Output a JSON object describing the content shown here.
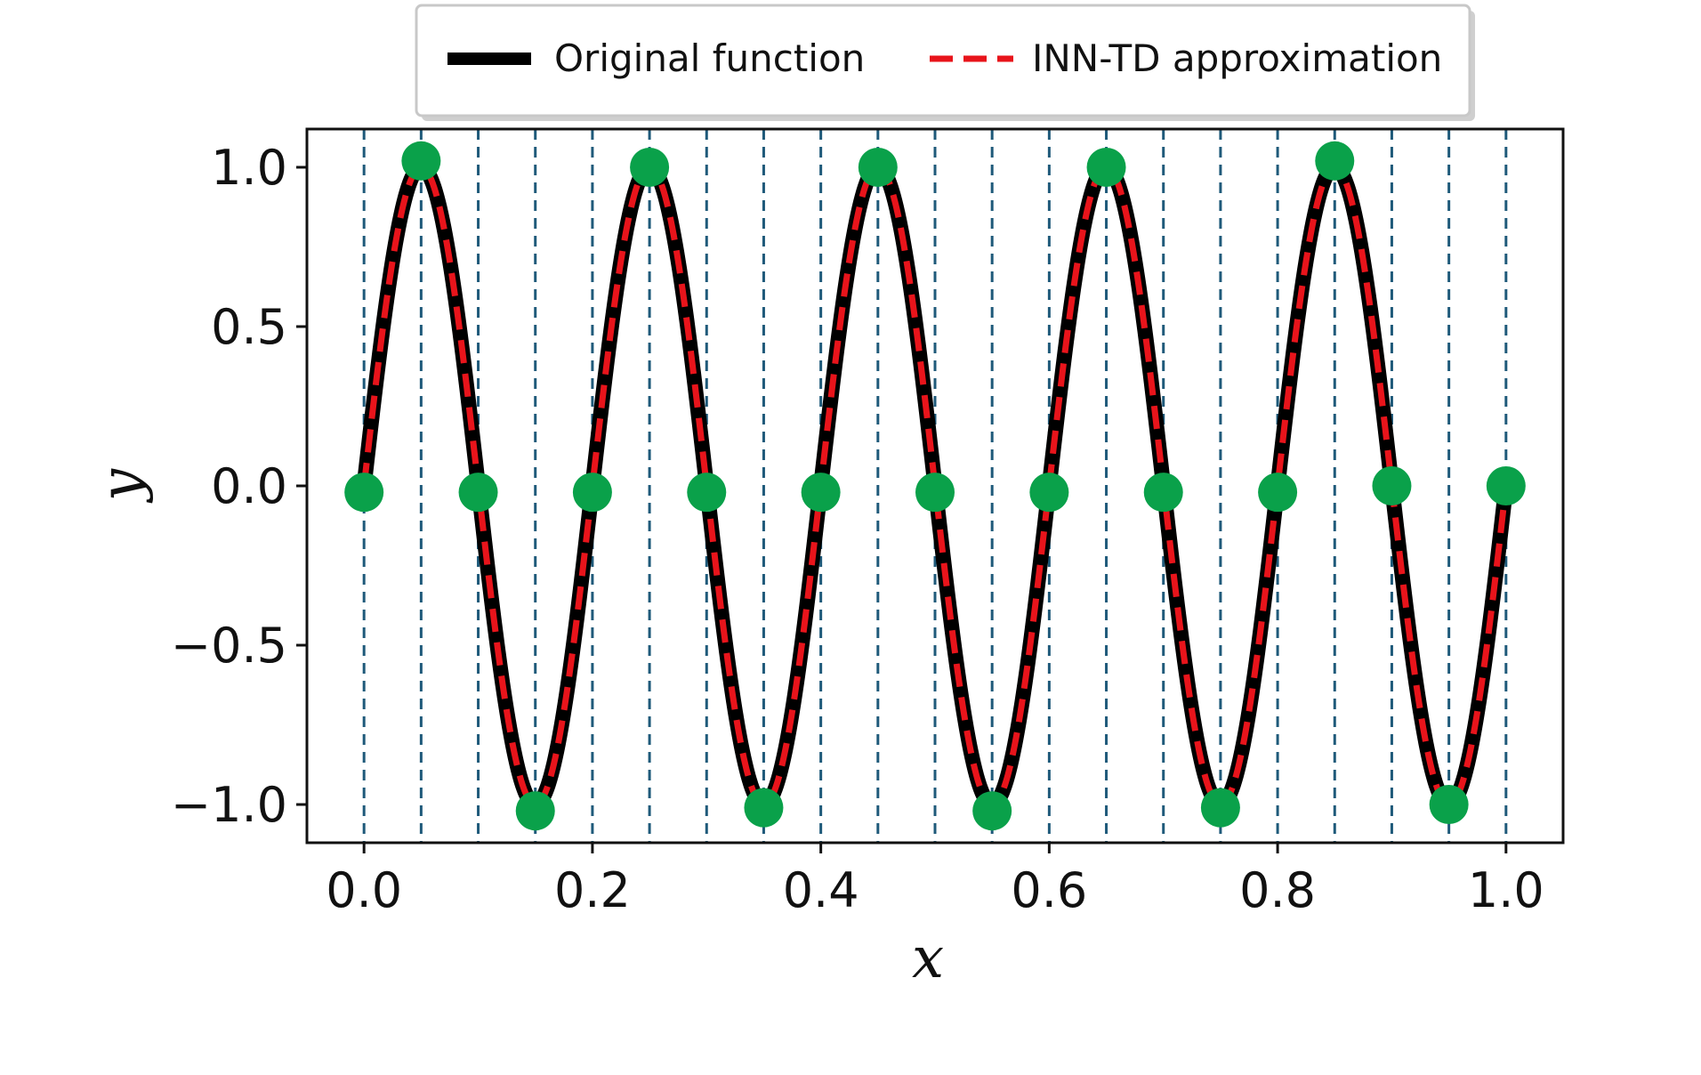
{
  "chart_data": {
    "type": "line",
    "title": "",
    "xlabel": "x",
    "ylabel": "y",
    "xlim": [
      -0.05,
      1.05
    ],
    "ylim": [
      -1.12,
      1.12
    ],
    "x_ticks": [
      0.0,
      0.2,
      0.4,
      0.6,
      0.8,
      1.0
    ],
    "x_tick_labels": [
      "0.0",
      "0.2",
      "0.4",
      "0.6",
      "0.8",
      "1.0"
    ],
    "y_ticks": [
      1.0,
      0.5,
      0.0,
      -0.5,
      -1.0
    ],
    "y_tick_labels": [
      "1.0",
      "0.5",
      "0.0",
      "−0.5",
      "−1.0"
    ],
    "legend": {
      "position": "top-center",
      "entries": [
        {
          "label": "Original function",
          "style": "solid",
          "color": "#000000"
        },
        {
          "label": "INN-TD approximation",
          "style": "dashed",
          "color": "#e8141b"
        }
      ]
    },
    "series": [
      {
        "name": "Original function",
        "function": "sin(10*pi*x)",
        "style": "solid",
        "color": "#000000"
      },
      {
        "name": "INN-TD approximation",
        "function": "sin(10*pi*x)",
        "style": "dashed",
        "color": "#e8141b"
      }
    ],
    "nodes": {
      "x": [
        0.0,
        0.05,
        0.1,
        0.15,
        0.2,
        0.25,
        0.3,
        0.35,
        0.4,
        0.45,
        0.5,
        0.55,
        0.6,
        0.65,
        0.7,
        0.75,
        0.8,
        0.85,
        0.9,
        0.95,
        1.0
      ],
      "y": [
        -0.02,
        1.02,
        -0.02,
        -1.02,
        -0.02,
        1.0,
        -0.02,
        -1.01,
        -0.02,
        1.0,
        -0.02,
        -1.02,
        -0.02,
        1.0,
        -0.02,
        -1.01,
        -0.02,
        1.02,
        0.0,
        -1.0,
        0.0
      ],
      "color": "#0aa14a"
    },
    "vertical_lines": {
      "x": [
        0.0,
        0.05,
        0.1,
        0.15,
        0.2,
        0.25,
        0.3,
        0.35,
        0.4,
        0.45,
        0.5,
        0.55,
        0.6,
        0.65,
        0.7,
        0.75,
        0.8,
        0.85,
        0.9,
        0.95,
        1.0
      ],
      "style": "dashed",
      "color": "#1f5a7a"
    },
    "grid": false
  }
}
